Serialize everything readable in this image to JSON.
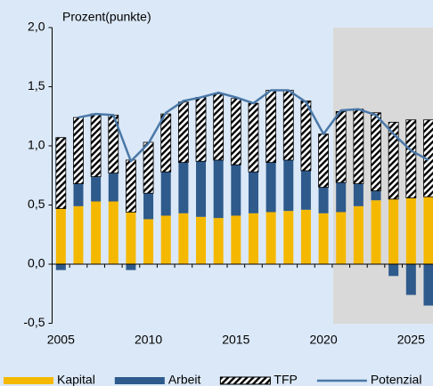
{
  "chart_data": {
    "type": "bar",
    "stacked": true,
    "y_axis_label": "Prozent(punkte)",
    "categories": [
      "2005",
      null,
      null,
      null,
      null,
      "2010",
      null,
      null,
      null,
      null,
      "2015",
      null,
      null,
      null,
      null,
      "2020",
      null,
      null,
      null,
      null,
      "2025",
      null
    ],
    "series": [
      {
        "name": "Kapital",
        "type": "bar",
        "color": "#f5b800",
        "values": [
          0.47,
          0.49,
          0.53,
          0.53,
          0.44,
          0.38,
          0.41,
          0.43,
          0.4,
          0.39,
          0.41,
          0.43,
          0.44,
          0.45,
          0.46,
          0.43,
          0.44,
          0.49,
          0.54,
          0.55,
          0.56,
          0.57
        ]
      },
      {
        "name": "Arbeit",
        "type": "bar",
        "color": "#2e5a8c",
        "values": [
          -0.05,
          0.19,
          0.21,
          0.24,
          -0.05,
          0.22,
          0.37,
          0.43,
          0.47,
          0.49,
          0.43,
          0.35,
          0.42,
          0.43,
          0.33,
          0.22,
          0.25,
          0.19,
          0.08,
          -0.1,
          -0.26,
          -0.35
        ]
      },
      {
        "name": "TFP",
        "type": "bar",
        "color": "hatch",
        "values": [
          0.6,
          0.56,
          0.53,
          0.49,
          0.44,
          0.43,
          0.49,
          0.51,
          0.54,
          0.56,
          0.56,
          0.58,
          0.61,
          0.59,
          0.59,
          0.45,
          0.6,
          0.63,
          0.66,
          0.65,
          0.66,
          0.65
        ]
      },
      {
        "name": "Potenzial",
        "type": "line",
        "color": "#4a78a8",
        "values": [
          null,
          1.24,
          1.27,
          1.26,
          0.87,
          1.02,
          1.28,
          1.38,
          1.41,
          1.45,
          1.41,
          1.36,
          1.47,
          1.47,
          1.37,
          1.1,
          1.3,
          1.31,
          1.26,
          1.1,
          0.96,
          0.88
        ]
      }
    ],
    "ylim": [
      -0.5,
      2.0
    ],
    "yticks": [
      {
        "value": -0.5,
        "label": "-0,5"
      },
      {
        "value": 0,
        "label": "0,0"
      },
      {
        "value": 0.5,
        "label": "0,5"
      },
      {
        "value": 1.0,
        "label": "1,0"
      },
      {
        "value": 1.5,
        "label": "1,5"
      },
      {
        "value": 2.0,
        "label": "2,0"
      }
    ],
    "grid": false,
    "legend": "bottom"
  }
}
